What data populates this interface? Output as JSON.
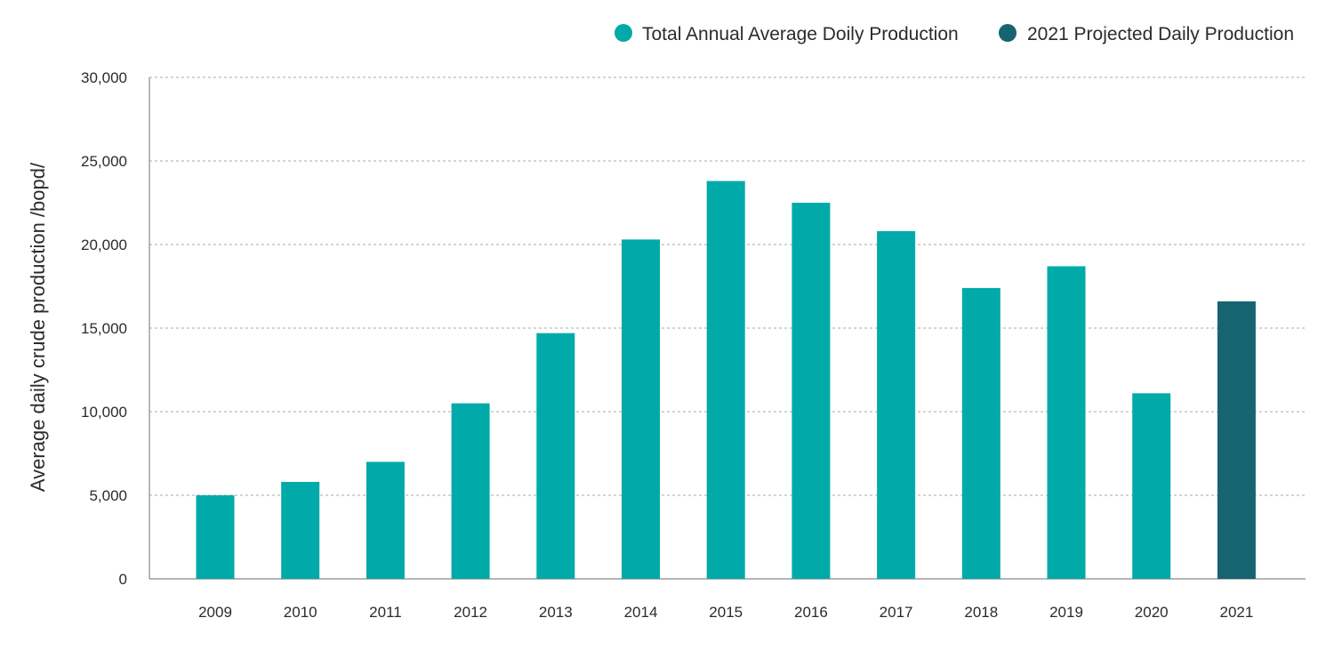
{
  "chart_data": {
    "type": "bar",
    "title": "",
    "xlabel": "",
    "ylabel": "Average daily crude production /bopd/",
    "ylim": [
      0,
      30000
    ],
    "yticks": [
      0,
      5000,
      10000,
      15000,
      20000,
      25000,
      30000
    ],
    "ytick_labels": [
      "0",
      "5,000",
      "10,000",
      "15,000",
      "20,000",
      "25,000",
      "30,000"
    ],
    "grid": true,
    "legend_position": "top-right",
    "categories": [
      "2009",
      "2010",
      "2011",
      "2012",
      "2013",
      "2014",
      "2015",
      "2016",
      "2017",
      "2018",
      "2019",
      "2020",
      "2021"
    ],
    "series": [
      {
        "name": "Total Annual Average Doily Production",
        "color": "#00aaa9",
        "values": [
          5000,
          5800,
          7000,
          10500,
          14700,
          20300,
          23800,
          22500,
          20800,
          17400,
          18700,
          11100,
          null
        ]
      },
      {
        "name": "2021 Projected Daily Production",
        "color": "#166470",
        "values": [
          null,
          null,
          null,
          null,
          null,
          null,
          null,
          null,
          null,
          null,
          null,
          null,
          16600
        ]
      }
    ]
  }
}
